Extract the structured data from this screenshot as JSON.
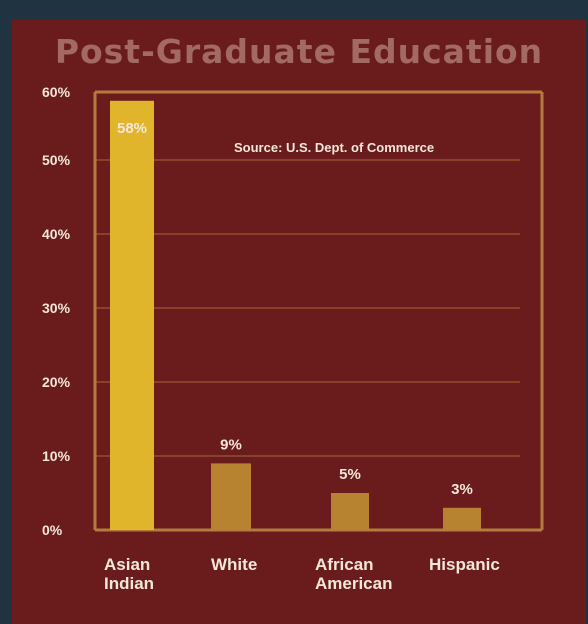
{
  "chart_data": {
    "type": "bar",
    "title": "Post-Graduate Education",
    "source_note": "Source: U.S. Dept. of Commerce",
    "categories": [
      [
        "Asian",
        "Indian"
      ],
      [
        "White"
      ],
      [
        "African",
        "American"
      ],
      [
        "Hispanic"
      ]
    ],
    "values": [
      58,
      9,
      5,
      3
    ],
    "value_labels": [
      "58%",
      "9%",
      "5%",
      "3%"
    ],
    "yticks": [
      "0%",
      "10%",
      "20%",
      "30%",
      "40%",
      "50%",
      "60%"
    ],
    "ylim": [
      0,
      60
    ],
    "grid": true,
    "bar_colors": [
      "#e0b52c",
      "#b88330",
      "#b88330",
      "#b88330"
    ]
  },
  "colors": {
    "background": "#6a1c1c",
    "outer": "#1f3340",
    "axis": "#b37b3d",
    "title": "#a26a63",
    "text": "#f3e7d8"
  }
}
